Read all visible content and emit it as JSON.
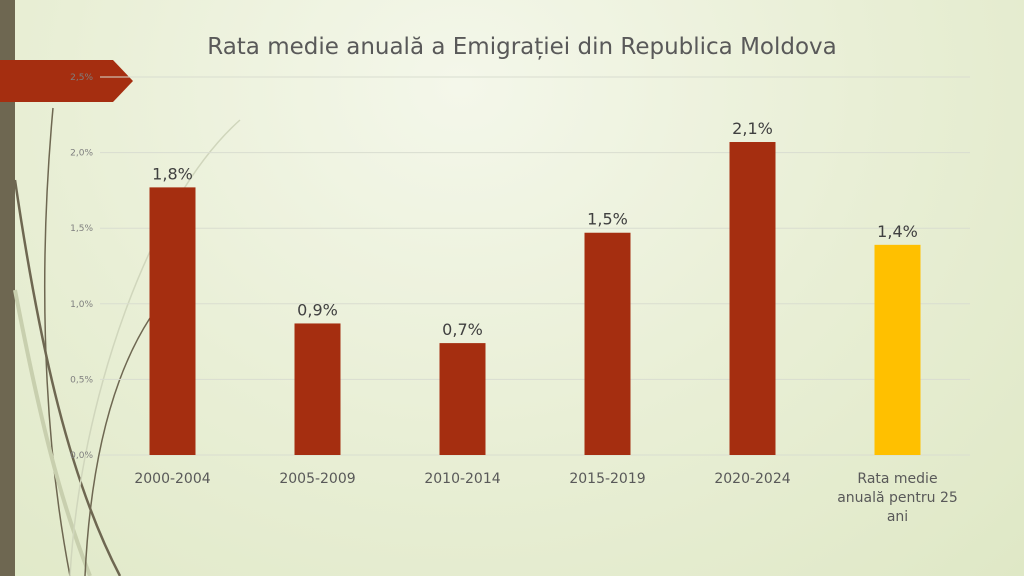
{
  "chart_data": {
    "type": "bar",
    "title": "Rata medie anuală a Emigrației din Republica Moldova",
    "categories": [
      "2000-2004",
      "2005-2009",
      "2010-2014",
      "2015-2019",
      "2020-2024",
      "Rata medie anuală pentru 25 ani"
    ],
    "category_lines": [
      [
        "2000-2004"
      ],
      [
        "2005-2009"
      ],
      [
        "2010-2014"
      ],
      [
        "2015-2019"
      ],
      [
        "2020-2024"
      ],
      [
        "Rata medie",
        "anuală pentru 25",
        "ani"
      ]
    ],
    "values": [
      1.77,
      0.87,
      0.74,
      1.47,
      2.07,
      1.39
    ],
    "data_labels": [
      "1,8%",
      "0,9%",
      "0,7%",
      "1,5%",
      "2,1%",
      "1,4%"
    ],
    "colors": [
      "#a52e10",
      "#a52e10",
      "#a52e10",
      "#a52e10",
      "#a52e10",
      "#ffc000"
    ],
    "yticks": [
      0,
      0.5,
      1,
      1.5,
      2,
      2.5
    ],
    "ytick_labels": [
      "0,0%",
      "0,5%",
      "1,0%",
      "1,5%",
      "2,0%",
      "2,5%"
    ],
    "ylim": [
      0,
      2.5
    ],
    "xlabel": "",
    "ylabel": "",
    "grid": true,
    "legend": "none"
  }
}
